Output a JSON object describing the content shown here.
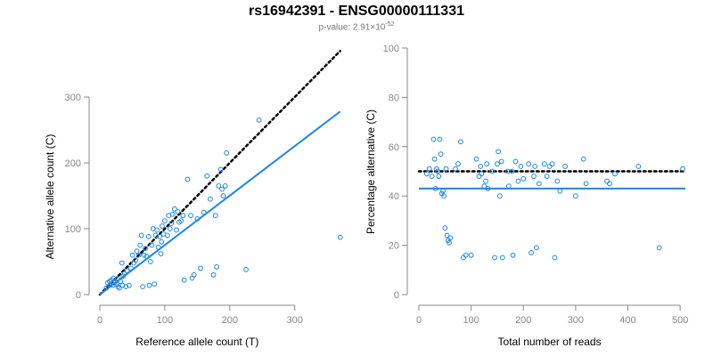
{
  "title": "rs16942391 - ENSG00000111331",
  "subtitle": {
    "prefix": "p-value: 2.91×10",
    "exponent": "-52"
  },
  "colors": {
    "accent": "#1f86e6",
    "reference": "#000000",
    "axis": "#888888"
  },
  "chart_data": [
    {
      "type": "scatter",
      "title": "",
      "xlabel": "Reference allele count (T)",
      "ylabel": "Alternative allele count (C)",
      "xlim": [
        0,
        380
      ],
      "ylim": [
        0,
        300
      ],
      "x_ticks": [
        0,
        100,
        200,
        300
      ],
      "y_ticks": [
        0,
        100,
        200,
        300
      ],
      "grid": false,
      "points": [
        [
          10,
          10
        ],
        [
          12,
          18
        ],
        [
          15,
          20
        ],
        [
          16,
          15
        ],
        [
          18,
          22
        ],
        [
          20,
          14
        ],
        [
          21,
          25
        ],
        [
          22,
          18
        ],
        [
          24,
          20
        ],
        [
          26,
          16
        ],
        [
          27,
          24
        ],
        [
          28,
          12
        ],
        [
          30,
          10
        ],
        [
          32,
          20
        ],
        [
          34,
          48
        ],
        [
          35,
          14
        ],
        [
          36,
          28
        ],
        [
          38,
          32
        ],
        [
          40,
          12
        ],
        [
          42,
          36
        ],
        [
          45,
          14
        ],
        [
          48,
          40
        ],
        [
          50,
          60
        ],
        [
          52,
          48
        ],
        [
          55,
          52
        ],
        [
          57,
          66
        ],
        [
          60,
          60
        ],
        [
          62,
          75
        ],
        [
          64,
          90
        ],
        [
          66,
          12
        ],
        [
          68,
          60
        ],
        [
          70,
          70
        ],
        [
          72,
          58
        ],
        [
          75,
          88
        ],
        [
          76,
          14
        ],
        [
          78,
          50
        ],
        [
          80,
          75
        ],
        [
          82,
          100
        ],
        [
          84,
          16
        ],
        [
          86,
          90
        ],
        [
          88,
          98
        ],
        [
          90,
          72
        ],
        [
          92,
          88
        ],
        [
          94,
          62
        ],
        [
          95,
          80
        ],
        [
          96,
          104
        ],
        [
          98,
          92
        ],
        [
          100,
          112
        ],
        [
          104,
          90
        ],
        [
          106,
          120
        ],
        [
          108,
          100
        ],
        [
          110,
          108
        ],
        [
          112,
          122
        ],
        [
          115,
          130
        ],
        [
          118,
          98
        ],
        [
          120,
          126
        ],
        [
          122,
          110
        ],
        [
          125,
          112
        ],
        [
          128,
          120
        ],
        [
          130,
          22
        ],
        [
          135,
          175
        ],
        [
          140,
          120
        ],
        [
          142,
          25
        ],
        [
          145,
          30
        ],
        [
          150,
          115
        ],
        [
          155,
          40
        ],
        [
          160,
          125
        ],
        [
          165,
          180
        ],
        [
          170,
          145
        ],
        [
          175,
          30
        ],
        [
          178,
          120
        ],
        [
          180,
          42
        ],
        [
          183,
          165
        ],
        [
          186,
          190
        ],
        [
          188,
          160
        ],
        [
          190,
          150
        ],
        [
          193,
          165
        ],
        [
          195,
          215
        ],
        [
          225,
          38
        ],
        [
          245,
          265
        ],
        [
          370,
          87
        ]
      ],
      "series": [
        {
          "name": "",
          "kind": "reference-line",
          "style": "dotted",
          "color": "#000000",
          "x": [
            0,
            370
          ],
          "y": [
            0,
            370
          ]
        },
        {
          "name": "",
          "kind": "fitted-line",
          "style": "solid",
          "color": "#1f86e6",
          "x": [
            0,
            370
          ],
          "y": [
            0,
            278
          ]
        }
      ]
    },
    {
      "type": "scatter",
      "title": "",
      "xlabel": "Total number of reads",
      "ylabel": "Percentage alternative (C)",
      "xlim": [
        0,
        510
      ],
      "ylim": [
        0,
        100
      ],
      "x_ticks": [
        0,
        100,
        200,
        300,
        400,
        500
      ],
      "y_ticks": [
        0,
        20,
        40,
        60,
        80,
        100
      ],
      "grid": false,
      "points": [
        [
          15,
          49
        ],
        [
          20,
          51
        ],
        [
          25,
          48
        ],
        [
          28,
          63
        ],
        [
          30,
          55
        ],
        [
          32,
          43
        ],
        [
          34,
          51
        ],
        [
          36,
          50
        ],
        [
          38,
          48
        ],
        [
          40,
          63
        ],
        [
          42,
          57
        ],
        [
          44,
          41
        ],
        [
          46,
          42
        ],
        [
          48,
          40
        ],
        [
          50,
          27
        ],
        [
          52,
          51
        ],
        [
          54,
          24
        ],
        [
          56,
          22
        ],
        [
          58,
          21
        ],
        [
          60,
          23
        ],
        [
          70,
          51
        ],
        [
          75,
          53
        ],
        [
          80,
          62
        ],
        [
          85,
          15
        ],
        [
          90,
          16
        ],
        [
          100,
          16
        ],
        [
          110,
          55
        ],
        [
          115,
          48
        ],
        [
          118,
          52
        ],
        [
          120,
          49
        ],
        [
          125,
          44
        ],
        [
          128,
          46
        ],
        [
          130,
          53
        ],
        [
          132,
          43
        ],
        [
          140,
          50
        ],
        [
          145,
          15
        ],
        [
          150,
          53
        ],
        [
          152,
          58
        ],
        [
          155,
          40
        ],
        [
          158,
          54
        ],
        [
          160,
          15
        ],
        [
          170,
          50
        ],
        [
          172,
          44
        ],
        [
          178,
          50
        ],
        [
          180,
          16
        ],
        [
          185,
          54
        ],
        [
          190,
          46
        ],
        [
          195,
          52
        ],
        [
          200,
          47
        ],
        [
          210,
          53
        ],
        [
          215,
          17
        ],
        [
          220,
          48
        ],
        [
          222,
          52
        ],
        [
          225,
          19
        ],
        [
          230,
          45
        ],
        [
          240,
          53
        ],
        [
          245,
          48
        ],
        [
          250,
          52
        ],
        [
          255,
          53
        ],
        [
          260,
          15
        ],
        [
          265,
          46
        ],
        [
          270,
          42
        ],
        [
          280,
          52
        ],
        [
          300,
          40
        ],
        [
          315,
          55
        ],
        [
          320,
          45
        ],
        [
          360,
          46
        ],
        [
          365,
          45
        ],
        [
          375,
          49
        ],
        [
          420,
          52
        ],
        [
          460,
          19
        ],
        [
          505,
          51
        ]
      ],
      "series": [
        {
          "name": "",
          "kind": "reference-line",
          "style": "dotted",
          "color": "#000000",
          "x": [
            0,
            510
          ],
          "y": [
            50,
            50
          ]
        },
        {
          "name": "",
          "kind": "fitted-line",
          "style": "solid",
          "color": "#1f86e6",
          "x": [
            0,
            510
          ],
          "y": [
            43,
            43
          ]
        }
      ]
    }
  ]
}
